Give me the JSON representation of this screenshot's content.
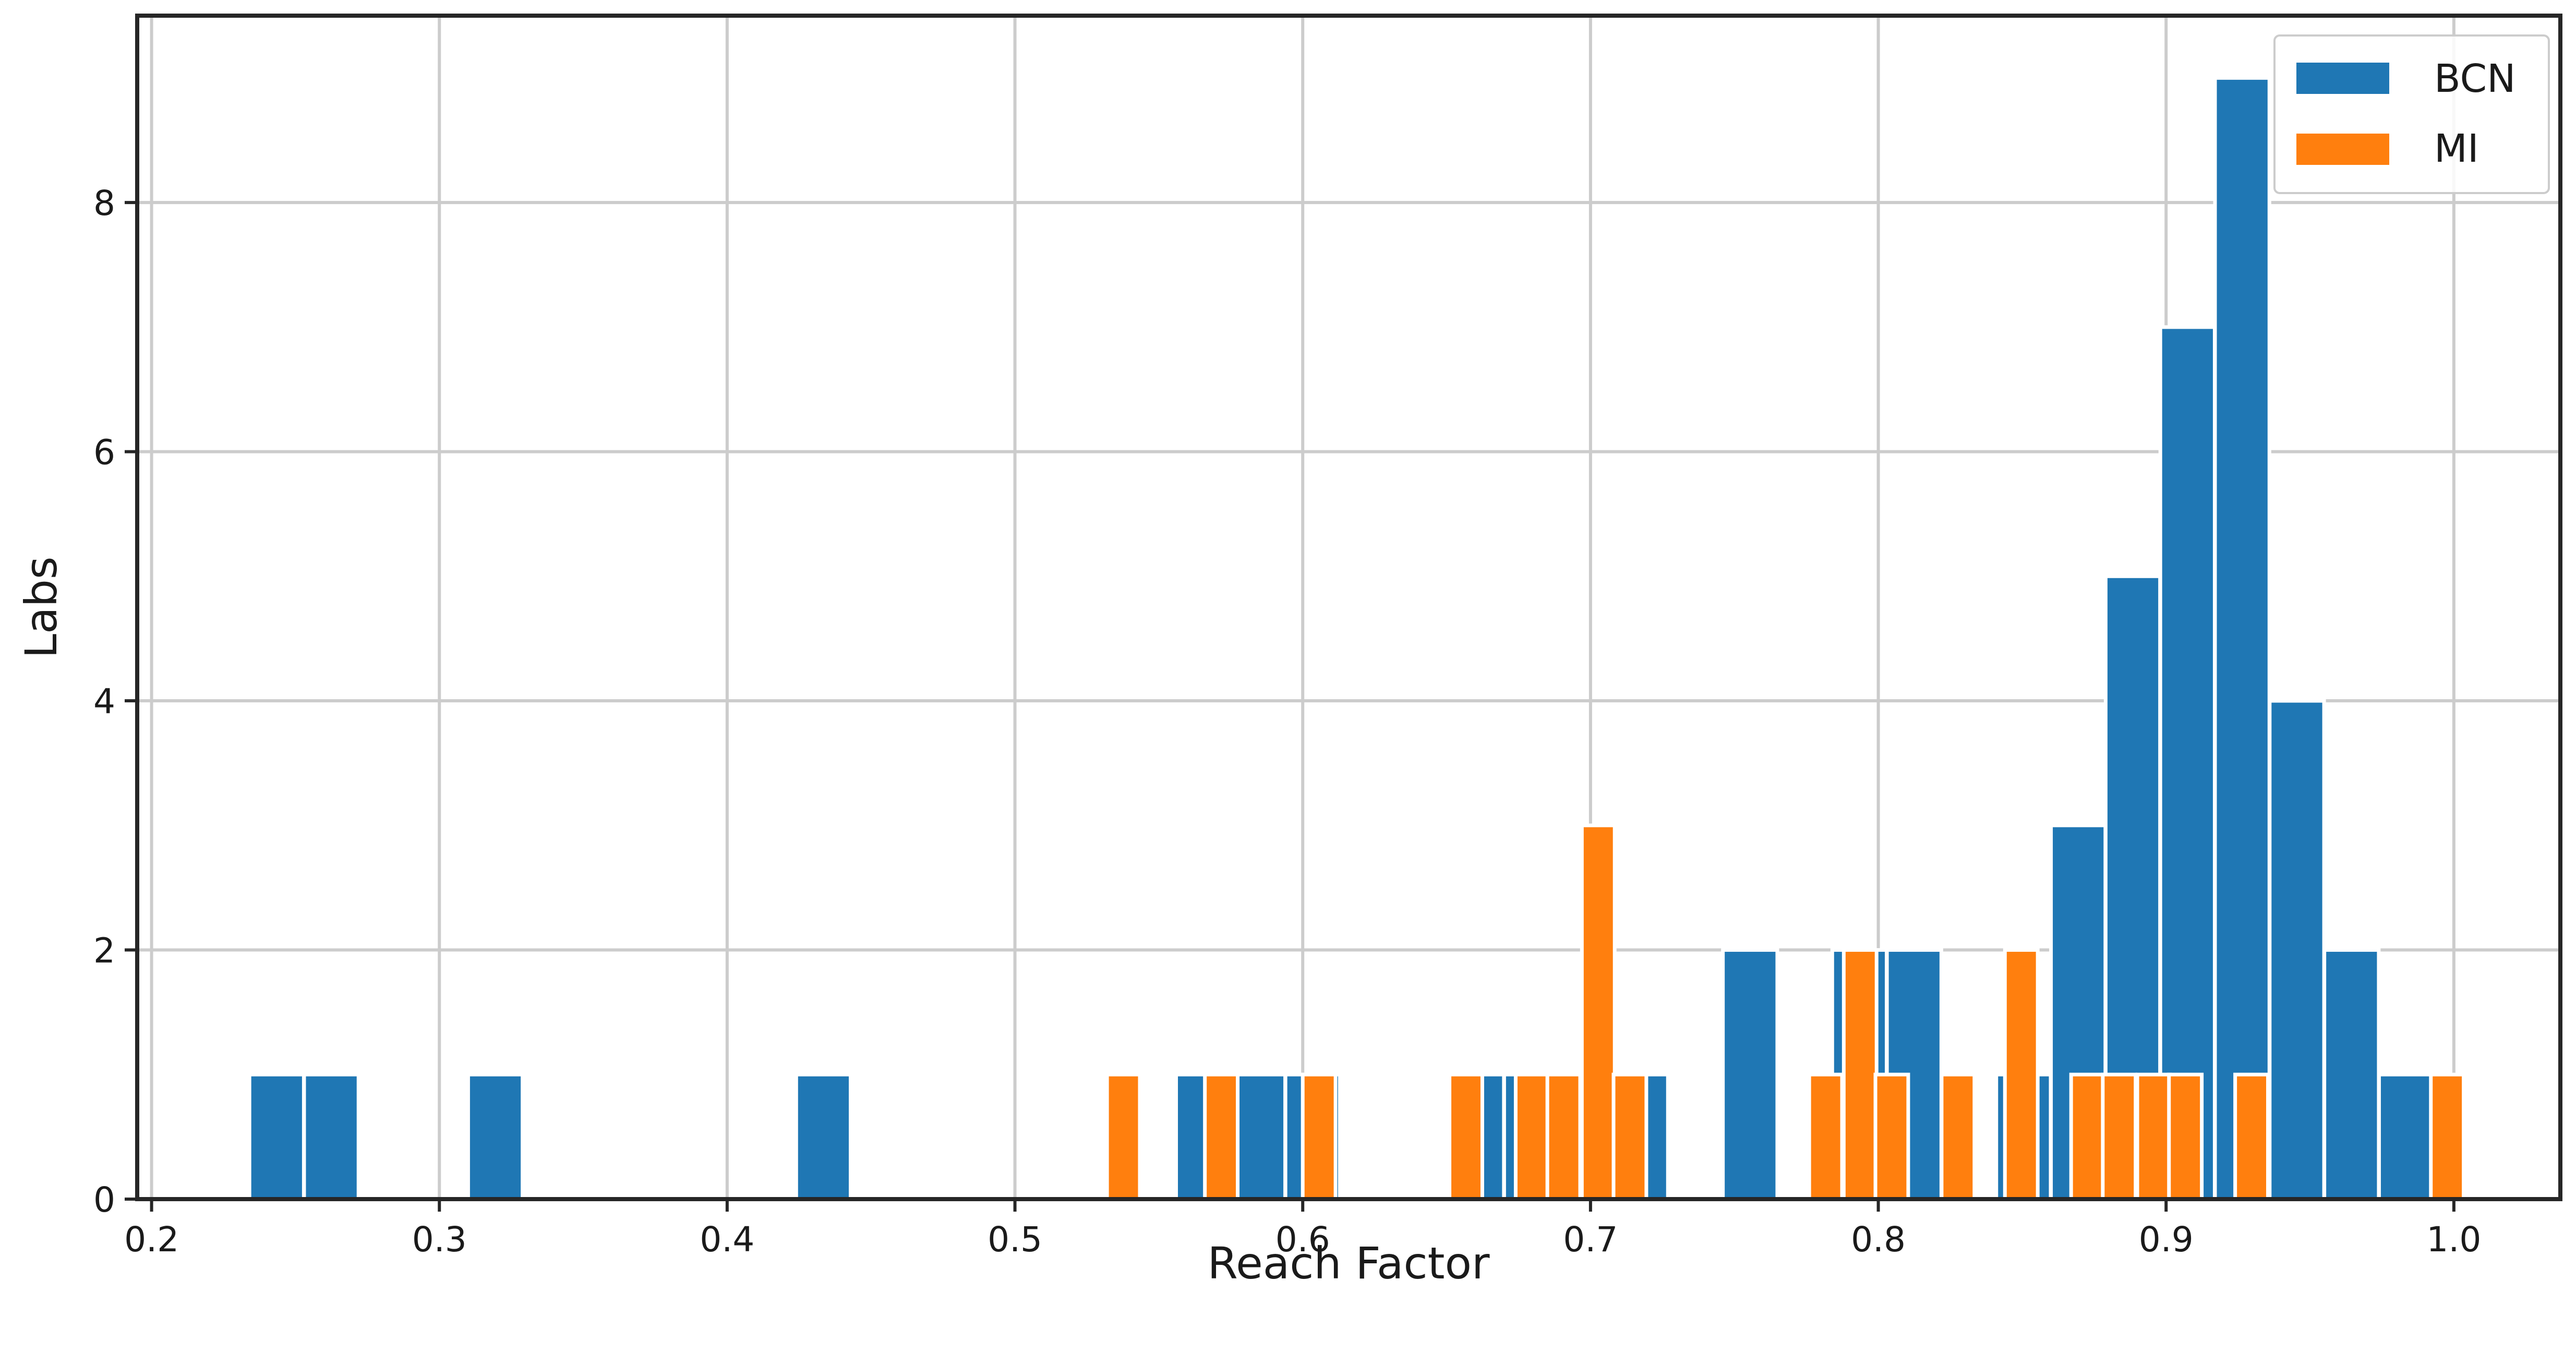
{
  "chart_data": {
    "type": "bar",
    "subtype": "overlapping-histogram",
    "title": "",
    "xlabel": "Reach Factor",
    "ylabel": "Labs",
    "xlim": [
      0.195,
      1.037
    ],
    "ylim": [
      0,
      9.5
    ],
    "xticks": [
      0.2,
      0.3,
      0.4,
      0.5,
      0.6,
      0.7,
      0.8,
      0.9,
      1.0
    ],
    "xtick_labels": [
      "0.2",
      "0.3",
      "0.4",
      "0.5",
      "0.6",
      "0.7",
      "0.8",
      "0.9",
      "1.0"
    ],
    "yticks": [
      0,
      2,
      4,
      6,
      8
    ],
    "ytick_labels": [
      "0",
      "2",
      "4",
      "6",
      "8"
    ],
    "grid": true,
    "legend_position": "top-right",
    "series": [
      {
        "name": "BCN",
        "color": "#1f77b4",
        "bin_width": 0.0189,
        "bins": [
          {
            "x0": 0.234,
            "count": 1
          },
          {
            "x0": 0.253,
            "count": 1
          },
          {
            "x0": 0.31,
            "count": 1
          },
          {
            "x0": 0.424,
            "count": 1
          },
          {
            "x0": 0.556,
            "count": 1
          },
          {
            "x0": 0.575,
            "count": 1
          },
          {
            "x0": 0.594,
            "count": 1
          },
          {
            "x0": 0.651,
            "count": 1
          },
          {
            "x0": 0.67,
            "count": 1
          },
          {
            "x0": 0.689,
            "count": 1
          },
          {
            "x0": 0.708,
            "count": 1
          },
          {
            "x0": 0.746,
            "count": 2
          },
          {
            "x0": 0.784,
            "count": 2
          },
          {
            "x0": 0.803,
            "count": 2
          },
          {
            "x0": 0.841,
            "count": 1
          },
          {
            "x0": 0.86,
            "count": 3
          },
          {
            "x0": 0.879,
            "count": 5
          },
          {
            "x0": 0.898,
            "count": 7
          },
          {
            "x0": 0.917,
            "count": 9
          },
          {
            "x0": 0.936,
            "count": 4
          },
          {
            "x0": 0.955,
            "count": 2
          },
          {
            "x0": 0.974,
            "count": 1
          }
        ]
      },
      {
        "name": "MI",
        "color": "#ff7f0e",
        "bin_width": 0.0114,
        "bins": [
          {
            "x0": 0.532,
            "count": 1
          },
          {
            "x0": 0.566,
            "count": 1
          },
          {
            "x0": 0.6,
            "count": 1
          },
          {
            "x0": 0.651,
            "count": 1
          },
          {
            "x0": 0.674,
            "count": 1
          },
          {
            "x0": 0.685,
            "count": 1
          },
          {
            "x0": 0.697,
            "count": 3
          },
          {
            "x0": 0.708,
            "count": 1
          },
          {
            "x0": 0.776,
            "count": 1
          },
          {
            "x0": 0.788,
            "count": 2
          },
          {
            "x0": 0.799,
            "count": 1
          },
          {
            "x0": 0.822,
            "count": 1
          },
          {
            "x0": 0.844,
            "count": 2
          },
          {
            "x0": 0.867,
            "count": 1
          },
          {
            "x0": 0.878,
            "count": 1
          },
          {
            "x0": 0.89,
            "count": 1
          },
          {
            "x0": 0.901,
            "count": 1
          },
          {
            "x0": 0.924,
            "count": 1
          },
          {
            "x0": 0.992,
            "count": 1
          }
        ]
      }
    ]
  }
}
